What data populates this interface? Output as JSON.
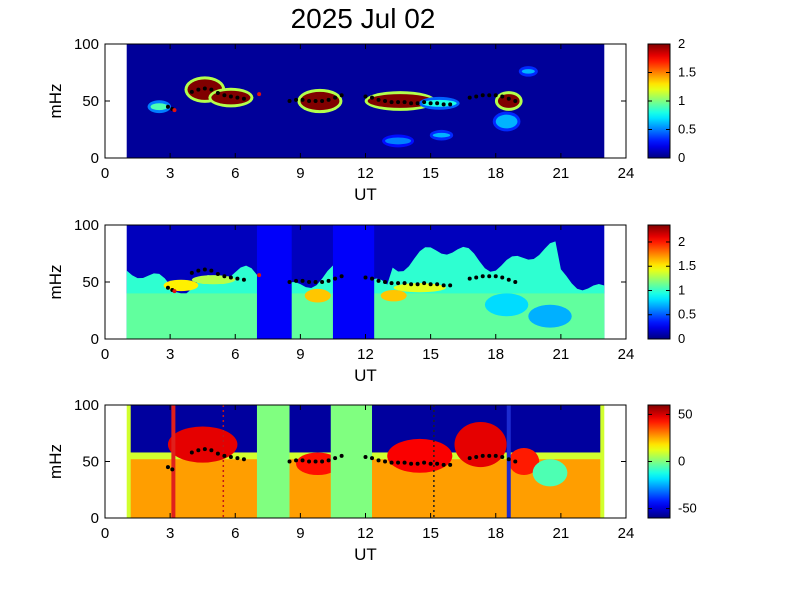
{
  "figure": {
    "title": "2025 Jul 02"
  },
  "chart_data": [
    {
      "type": "heatmap",
      "id": "panel1",
      "xlabel": "UT",
      "ylabel": "mHz",
      "xlim": [
        0,
        24
      ],
      "ylim": [
        0,
        100
      ],
      "xticks": [
        "0",
        "3",
        "6",
        "9",
        "12",
        "15",
        "18",
        "21",
        "24"
      ],
      "yticks": [
        "0",
        "50",
        "100"
      ],
      "data_span_ut": [
        1,
        23
      ],
      "colorbar": {
        "min": 0,
        "max": 2,
        "ticks": [
          "0",
          "0.5",
          "1",
          "1.5",
          "2"
        ]
      },
      "background_value": 0.05,
      "blobs": [
        {
          "ut": 4.6,
          "mhz": 60,
          "rx": 0.8,
          "ry": 9,
          "value": 2
        },
        {
          "ut": 5.8,
          "mhz": 53,
          "rx": 0.9,
          "ry": 6,
          "value": 2
        },
        {
          "ut": 9.9,
          "mhz": 50,
          "rx": 0.9,
          "ry": 8,
          "value": 2
        },
        {
          "ut": 13.6,
          "mhz": 50,
          "rx": 1.5,
          "ry": 6,
          "value": 2
        },
        {
          "ut": 15.4,
          "mhz": 48,
          "rx": 0.8,
          "ry": 3,
          "value": 0.8
        },
        {
          "ut": 18.6,
          "mhz": 50,
          "rx": 0.5,
          "ry": 6,
          "value": 2
        },
        {
          "ut": 2.5,
          "mhz": 45,
          "rx": 0.4,
          "ry": 3,
          "value": 0.9
        },
        {
          "ut": 13.5,
          "mhz": 15,
          "rx": 0.6,
          "ry": 3,
          "value": 0.5
        },
        {
          "ut": 15.5,
          "mhz": 20,
          "rx": 0.4,
          "ry": 2,
          "value": 0.6
        },
        {
          "ut": 18.5,
          "mhz": 32,
          "rx": 0.5,
          "ry": 6,
          "value": 0.6
        },
        {
          "ut": 19.5,
          "mhz": 76,
          "rx": 0.3,
          "ry": 2,
          "value": 0.6
        }
      ],
      "peaks": [
        {
          "ut": 2.9,
          "mhz": 45
        },
        {
          "ut": 3.1,
          "mhz": 43
        },
        {
          "ut": 4.0,
          "mhz": 58
        },
        {
          "ut": 4.3,
          "mhz": 60
        },
        {
          "ut": 4.6,
          "mhz": 61
        },
        {
          "ut": 4.9,
          "mhz": 60
        },
        {
          "ut": 5.2,
          "mhz": 57
        },
        {
          "ut": 5.5,
          "mhz": 55
        },
        {
          "ut": 5.8,
          "mhz": 54
        },
        {
          "ut": 6.1,
          "mhz": 53
        },
        {
          "ut": 6.4,
          "mhz": 52
        },
        {
          "ut": 8.5,
          "mhz": 50
        },
        {
          "ut": 8.8,
          "mhz": 51
        },
        {
          "ut": 9.1,
          "mhz": 51
        },
        {
          "ut": 9.4,
          "mhz": 50
        },
        {
          "ut": 9.7,
          "mhz": 50
        },
        {
          "ut": 10.0,
          "mhz": 50
        },
        {
          "ut": 10.3,
          "mhz": 51
        },
        {
          "ut": 10.6,
          "mhz": 53
        },
        {
          "ut": 10.9,
          "mhz": 55
        },
        {
          "ut": 12.0,
          "mhz": 54
        },
        {
          "ut": 12.3,
          "mhz": 53
        },
        {
          "ut": 12.6,
          "mhz": 51
        },
        {
          "ut": 12.9,
          "mhz": 50
        },
        {
          "ut": 13.2,
          "mhz": 49
        },
        {
          "ut": 13.5,
          "mhz": 49
        },
        {
          "ut": 13.8,
          "mhz": 49
        },
        {
          "ut": 14.1,
          "mhz": 48
        },
        {
          "ut": 14.4,
          "mhz": 48
        },
        {
          "ut": 14.7,
          "mhz": 49
        },
        {
          "ut": 15.0,
          "mhz": 48
        },
        {
          "ut": 15.3,
          "mhz": 48
        },
        {
          "ut": 15.6,
          "mhz": 47
        },
        {
          "ut": 15.9,
          "mhz": 47
        },
        {
          "ut": 16.8,
          "mhz": 53
        },
        {
          "ut": 17.1,
          "mhz": 54
        },
        {
          "ut": 17.4,
          "mhz": 55
        },
        {
          "ut": 17.7,
          "mhz": 55
        },
        {
          "ut": 18.0,
          "mhz": 55
        },
        {
          "ut": 18.3,
          "mhz": 54
        },
        {
          "ut": 18.6,
          "mhz": 52
        },
        {
          "ut": 18.9,
          "mhz": 50
        }
      ],
      "red_peaks": [
        {
          "ut": 3.2,
          "mhz": 42
        },
        {
          "ut": 7.1,
          "mhz": 56
        }
      ]
    },
    {
      "type": "heatmap",
      "id": "panel2",
      "xlabel": "UT",
      "ylabel": "mHz",
      "xlim": [
        0,
        24
      ],
      "ylim": [
        0,
        100
      ],
      "xticks": [
        "0",
        "3",
        "6",
        "9",
        "12",
        "15",
        "18",
        "21",
        "24"
      ],
      "yticks": [
        "0",
        "50",
        "100"
      ],
      "data_span_ut": [
        1,
        23
      ],
      "colorbar": {
        "min": 0,
        "max": 2.35,
        "ticks": [
          "0",
          "0.5",
          "1",
          "1.5",
          "2"
        ]
      },
      "blobs": [
        {
          "ut": 3.5,
          "mhz": 47,
          "rx": 0.8,
          "ry": 5,
          "value": 1.5
        },
        {
          "ut": 5.0,
          "mhz": 52,
          "rx": 1.0,
          "ry": 4,
          "value": 1.3
        },
        {
          "ut": 9.8,
          "mhz": 38,
          "rx": 0.6,
          "ry": 6,
          "value": 1.6
        },
        {
          "ut": 13.3,
          "mhz": 38,
          "rx": 0.6,
          "ry": 5,
          "value": 1.6
        },
        {
          "ut": 14.5,
          "mhz": 45,
          "rx": 1.2,
          "ry": 4,
          "value": 1.4
        },
        {
          "ut": 18.5,
          "mhz": 30,
          "rx": 1.0,
          "ry": 10,
          "value": 0.8
        },
        {
          "ut": 20.5,
          "mhz": 20,
          "rx": 1.0,
          "ry": 10,
          "value": 0.7
        }
      ],
      "peaks": [
        {
          "ut": 2.9,
          "mhz": 45
        },
        {
          "ut": 3.1,
          "mhz": 43
        },
        {
          "ut": 4.0,
          "mhz": 58
        },
        {
          "ut": 4.3,
          "mhz": 60
        },
        {
          "ut": 4.6,
          "mhz": 61
        },
        {
          "ut": 4.9,
          "mhz": 60
        },
        {
          "ut": 5.2,
          "mhz": 57
        },
        {
          "ut": 5.5,
          "mhz": 55
        },
        {
          "ut": 5.8,
          "mhz": 54
        },
        {
          "ut": 6.1,
          "mhz": 53
        },
        {
          "ut": 6.4,
          "mhz": 52
        },
        {
          "ut": 8.5,
          "mhz": 50
        },
        {
          "ut": 8.8,
          "mhz": 51
        },
        {
          "ut": 9.1,
          "mhz": 51
        },
        {
          "ut": 9.4,
          "mhz": 50
        },
        {
          "ut": 9.7,
          "mhz": 50
        },
        {
          "ut": 10.0,
          "mhz": 50
        },
        {
          "ut": 10.3,
          "mhz": 51
        },
        {
          "ut": 10.6,
          "mhz": 53
        },
        {
          "ut": 10.9,
          "mhz": 55
        },
        {
          "ut": 12.0,
          "mhz": 54
        },
        {
          "ut": 12.3,
          "mhz": 53
        },
        {
          "ut": 12.6,
          "mhz": 51
        },
        {
          "ut": 12.9,
          "mhz": 50
        },
        {
          "ut": 13.2,
          "mhz": 49
        },
        {
          "ut": 13.5,
          "mhz": 49
        },
        {
          "ut": 13.8,
          "mhz": 49
        },
        {
          "ut": 14.1,
          "mhz": 48
        },
        {
          "ut": 14.4,
          "mhz": 48
        },
        {
          "ut": 14.7,
          "mhz": 49
        },
        {
          "ut": 15.0,
          "mhz": 48
        },
        {
          "ut": 15.3,
          "mhz": 48
        },
        {
          "ut": 15.6,
          "mhz": 47
        },
        {
          "ut": 15.9,
          "mhz": 47
        },
        {
          "ut": 16.8,
          "mhz": 53
        },
        {
          "ut": 17.1,
          "mhz": 54
        },
        {
          "ut": 17.4,
          "mhz": 55
        },
        {
          "ut": 17.7,
          "mhz": 55
        },
        {
          "ut": 18.0,
          "mhz": 55
        },
        {
          "ut": 18.3,
          "mhz": 54
        },
        {
          "ut": 18.6,
          "mhz": 52
        },
        {
          "ut": 18.9,
          "mhz": 50
        }
      ],
      "red_peaks": [
        {
          "ut": 3.2,
          "mhz": 42
        },
        {
          "ut": 7.1,
          "mhz": 56
        }
      ]
    },
    {
      "type": "heatmap",
      "id": "panel3",
      "xlabel": "UT",
      "ylabel": "mHz",
      "xlim": [
        0,
        24
      ],
      "ylim": [
        0,
        100
      ],
      "xticks": [
        "0",
        "3",
        "6",
        "9",
        "12",
        "15",
        "18",
        "21",
        "24"
      ],
      "yticks": [
        "0",
        "50",
        "100"
      ],
      "data_span_ut": [
        1,
        23
      ],
      "colorbar": {
        "min": -60,
        "max": 60,
        "ticks": [
          "-50",
          "0",
          "50"
        ]
      },
      "vertical_lines": [
        {
          "ut": 3.15,
          "style": "solid",
          "color": "#e0201c"
        },
        {
          "ut": 5.45,
          "style": "dotted",
          "color": "#c01818"
        },
        {
          "ut": 15.15,
          "style": "dotted",
          "color": "#202020"
        },
        {
          "ut": 18.6,
          "style": "solid",
          "color": "#1c2bd0"
        }
      ],
      "peaks": [
        {
          "ut": 2.9,
          "mhz": 45
        },
        {
          "ut": 3.1,
          "mhz": 43
        },
        {
          "ut": 4.0,
          "mhz": 58
        },
        {
          "ut": 4.3,
          "mhz": 60
        },
        {
          "ut": 4.6,
          "mhz": 61
        },
        {
          "ut": 4.9,
          "mhz": 60
        },
        {
          "ut": 5.2,
          "mhz": 57
        },
        {
          "ut": 5.5,
          "mhz": 55
        },
        {
          "ut": 5.8,
          "mhz": 54
        },
        {
          "ut": 6.1,
          "mhz": 53
        },
        {
          "ut": 6.4,
          "mhz": 52
        },
        {
          "ut": 8.5,
          "mhz": 50
        },
        {
          "ut": 8.8,
          "mhz": 51
        },
        {
          "ut": 9.1,
          "mhz": 51
        },
        {
          "ut": 9.4,
          "mhz": 50
        },
        {
          "ut": 9.7,
          "mhz": 50
        },
        {
          "ut": 10.0,
          "mhz": 50
        },
        {
          "ut": 10.3,
          "mhz": 51
        },
        {
          "ut": 10.6,
          "mhz": 53
        },
        {
          "ut": 10.9,
          "mhz": 55
        },
        {
          "ut": 12.0,
          "mhz": 54
        },
        {
          "ut": 12.3,
          "mhz": 53
        },
        {
          "ut": 12.6,
          "mhz": 51
        },
        {
          "ut": 12.9,
          "mhz": 50
        },
        {
          "ut": 13.2,
          "mhz": 49
        },
        {
          "ut": 13.5,
          "mhz": 49
        },
        {
          "ut": 13.8,
          "mhz": 49
        },
        {
          "ut": 14.1,
          "mhz": 48
        },
        {
          "ut": 14.4,
          "mhz": 48
        },
        {
          "ut": 14.7,
          "mhz": 49
        },
        {
          "ut": 15.0,
          "mhz": 48
        },
        {
          "ut": 15.3,
          "mhz": 48
        },
        {
          "ut": 15.6,
          "mhz": 47
        },
        {
          "ut": 15.9,
          "mhz": 47
        },
        {
          "ut": 16.8,
          "mhz": 53
        },
        {
          "ut": 17.1,
          "mhz": 54
        },
        {
          "ut": 17.4,
          "mhz": 55
        },
        {
          "ut": 17.7,
          "mhz": 55
        },
        {
          "ut": 18.0,
          "mhz": 55
        },
        {
          "ut": 18.3,
          "mhz": 54
        },
        {
          "ut": 18.6,
          "mhz": 52
        },
        {
          "ut": 18.9,
          "mhz": 50
        }
      ]
    }
  ]
}
